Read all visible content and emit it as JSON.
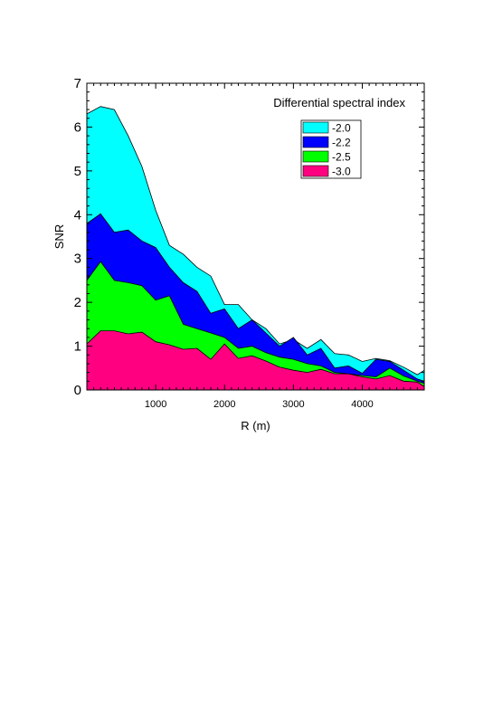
{
  "chart_data": {
    "type": "area",
    "title": "",
    "xlabel": "R (m)",
    "ylabel": "SNR",
    "xlim": [
      0,
      4900
    ],
    "ylim": [
      0,
      7
    ],
    "x_ticks": [
      1000,
      2000,
      3000,
      4000
    ],
    "y_ticks": [
      0,
      1,
      2,
      3,
      4,
      5,
      6,
      7
    ],
    "grid": false,
    "legend": {
      "title": "Differential spectral index",
      "placement": "top-right"
    },
    "x": [
      0,
      200,
      400,
      600,
      800,
      1000,
      1200,
      1400,
      1600,
      1800,
      2000,
      2200,
      2400,
      2600,
      2800,
      3000,
      3200,
      3400,
      3600,
      3800,
      4000,
      4200,
      4400,
      4600,
      4800,
      4900
    ],
    "series": [
      {
        "name": "-2.0",
        "color": "#00ffff",
        "values": [
          6.3,
          6.47,
          6.4,
          5.8,
          5.1,
          4.1,
          3.3,
          3.1,
          2.8,
          2.6,
          1.95,
          1.95,
          1.6,
          1.4,
          1.05,
          1.15,
          0.95,
          1.15,
          0.83,
          0.8,
          0.65,
          0.72,
          0.67,
          0.52,
          0.35,
          0.45
        ]
      },
      {
        "name": "-2.2",
        "color": "#0000ff",
        "values": [
          3.8,
          4.02,
          3.6,
          3.65,
          3.4,
          3.25,
          2.8,
          2.45,
          2.25,
          1.75,
          1.85,
          1.4,
          1.6,
          1.3,
          1.0,
          1.2,
          0.8,
          0.95,
          0.5,
          0.55,
          0.38,
          0.7,
          0.65,
          0.45,
          0.25,
          0.2
        ]
      },
      {
        "name": "-2.5",
        "color": "#00ff00",
        "values": [
          2.5,
          2.93,
          2.5,
          2.45,
          2.38,
          2.05,
          2.15,
          1.5,
          1.4,
          1.3,
          1.2,
          0.95,
          1.0,
          0.85,
          0.75,
          0.7,
          0.6,
          0.55,
          0.4,
          0.37,
          0.33,
          0.3,
          0.5,
          0.32,
          0.2,
          0.15
        ]
      },
      {
        "name": "-3.0",
        "color": "#ff0080",
        "values": [
          1.05,
          1.35,
          1.35,
          1.28,
          1.32,
          1.1,
          1.03,
          0.93,
          0.95,
          0.7,
          1.05,
          0.72,
          0.78,
          0.66,
          0.52,
          0.45,
          0.4,
          0.47,
          0.37,
          0.37,
          0.3,
          0.25,
          0.33,
          0.2,
          0.18,
          0.08
        ]
      }
    ]
  }
}
